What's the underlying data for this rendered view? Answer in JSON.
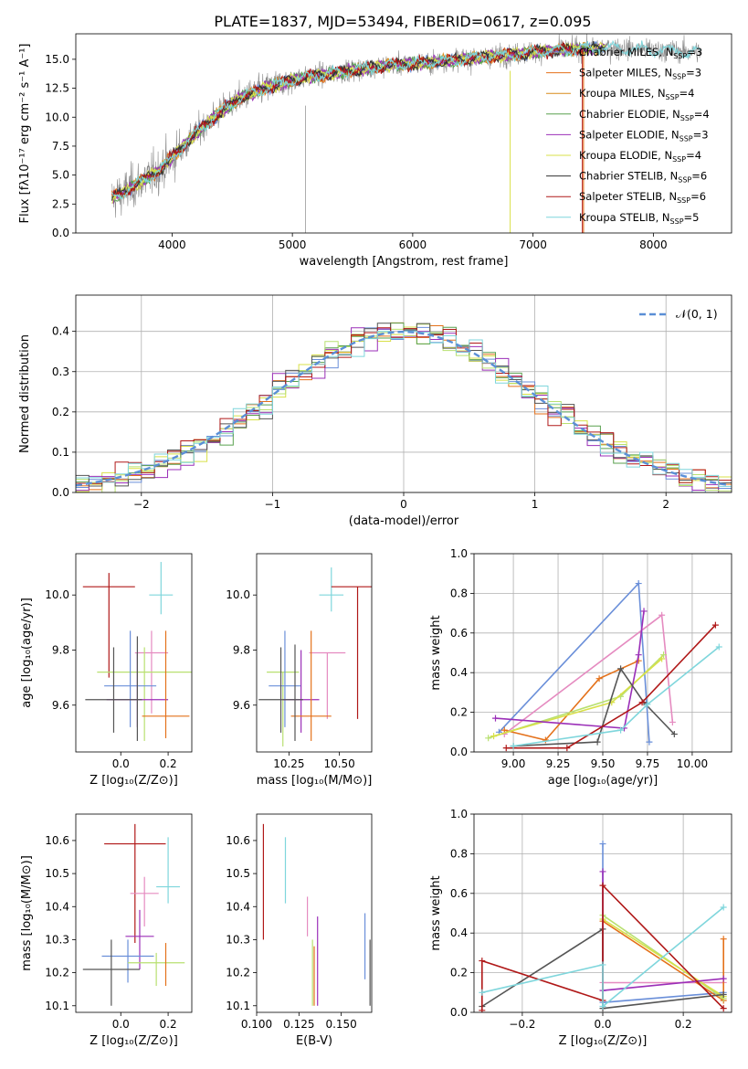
{
  "figure_title": "PLATE=1837, MJD=53494, FIBERID=0617, z=0.095",
  "colors": {
    "Chabrier MILES": "#6a8fd9",
    "Salpeter MILES": "#e4711a",
    "Kroupa MILES": "#d88c1a",
    "Chabrier ELODIE": "#59a14f",
    "Salpeter ELODIE": "#9b2fb8",
    "Kroupa ELODIE": "#d8e048",
    "Chabrier STELIB": "#333333",
    "Salpeter STELIB": "#b01818",
    "Kroupa STELIB": "#7fd6dc",
    "pink": "#e58bc0",
    "lime": "#b8e070",
    "darkgray": "#555555",
    "dashed": "#5b8fd6"
  },
  "chart_data": [
    {
      "id": "spectrum",
      "type": "line",
      "xlabel": "wavelength [Angstrom, rest frame]",
      "ylabel": "Flux [fλ10⁻¹⁷ erg cm⁻² s⁻¹ A⁻¹]",
      "xlim": [
        3200,
        8650
      ],
      "ylim": [
        0,
        17.2
      ],
      "xticks": [
        "4000",
        "5000",
        "6000",
        "7000",
        "8000"
      ],
      "yticks": [
        "0.0",
        "2.5",
        "5.0",
        "7.5",
        "10.0",
        "12.5",
        "15.0"
      ],
      "grid": false,
      "legend_position": "upper right",
      "legend": [
        {
          "label": "Chabrier MILES, N",
          "sub": "SSP",
          "suffix": "=3",
          "color": "#6a8fd9"
        },
        {
          "label": "Salpeter MILES, N",
          "sub": "SSP",
          "suffix": "=3",
          "color": "#e4711a"
        },
        {
          "label": "Kroupa MILES, N",
          "sub": "SSP",
          "suffix": "=4",
          "color": "#d88c1a"
        },
        {
          "label": "Chabrier ELODIE, N",
          "sub": "SSP",
          "suffix": "=4",
          "color": "#59a14f"
        },
        {
          "label": "Salpeter ELODIE, N",
          "sub": "SSP",
          "suffix": "=3",
          "color": "#9b2fb8"
        },
        {
          "label": "Kroupa ELODIE, N",
          "sub": "SSP",
          "suffix": "=4",
          "color": "#d8e048"
        },
        {
          "label": "Chabrier STELIB, N",
          "sub": "SSP",
          "suffix": "=6",
          "color": "#333333"
        },
        {
          "label": "Salpeter STELIB, N",
          "sub": "SSP",
          "suffix": "=6",
          "color": "#b01818"
        },
        {
          "label": "Kroupa STELIB, N",
          "sub": "SSP",
          "suffix": "=5",
          "color": "#7fd6dc"
        }
      ],
      "continuum": {
        "x": [
          3500,
          3600,
          3700,
          3800,
          3900,
          4000,
          4100,
          4200,
          4300,
          4400,
          4500,
          4600,
          4800,
          5000,
          5200,
          5400,
          5600,
          5800,
          6000,
          6200,
          6400,
          6600,
          6800,
          7000,
          7200,
          7400,
          7600,
          7800,
          8000,
          8200,
          8400
        ],
        "y": [
          3.0,
          3.5,
          4.2,
          4.8,
          5.5,
          6.5,
          7.6,
          8.6,
          9.6,
          10.4,
          11.2,
          11.8,
          12.6,
          13.2,
          13.6,
          13.9,
          14.2,
          14.5,
          14.6,
          14.8,
          15.0,
          15.2,
          15.4,
          15.6,
          15.8,
          15.9,
          16.0,
          15.9,
          15.8,
          15.7,
          15.6
        ]
      }
    },
    {
      "id": "residuals",
      "type": "histogram",
      "xlabel": "(data-model)/error",
      "ylabel": "Normed distribution",
      "xlim": [
        -2.5,
        2.5
      ],
      "ylim": [
        0,
        0.49
      ],
      "xticks": [
        "−2",
        "−1",
        "0",
        "1",
        "2"
      ],
      "yticks": [
        "0.0",
        "0.1",
        "0.2",
        "0.3",
        "0.4"
      ],
      "grid": true,
      "legend_position": "upper right",
      "legend": [
        {
          "label": "𝒩(0, 1)",
          "color": "#5b8fd6"
        }
      ],
      "bin_width": 0.1,
      "bin_start": -2.5
    },
    {
      "id": "age_vs_Z",
      "type": "errorbar",
      "xlabel": "Z [log₁₀(Z/Z⊙)]",
      "ylabel": "age  [log₁₀(age/yr)]",
      "xlim": [
        -0.19,
        0.3
      ],
      "ylim": [
        9.43,
        10.15
      ],
      "xticks": [
        "0.0",
        "0.2"
      ],
      "yticks": [
        "9.6",
        "9.8",
        "10.0"
      ],
      "points": [
        {
          "x": 0.06,
          "y": 10.0,
          "xerr": 0.0,
          "yerr": [
            0.0,
            0.0
          ],
          "color": "#6a8fd9"
        },
        {
          "x": -0.05,
          "y": 10.03,
          "xerr": 0.11,
          "yerr": [
            0.33,
            0.05
          ],
          "color": "#b01818"
        },
        {
          "x": 0.17,
          "y": 10.0,
          "xerr": 0.05,
          "yerr": [
            0.07,
            0.12
          ],
          "color": "#7fd6dc"
        },
        {
          "x": 0.13,
          "y": 9.79,
          "xerr": 0.07,
          "yerr": [
            0.22,
            0.08
          ],
          "color": "#e58bc0"
        },
        {
          "x": 0.1,
          "y": 9.72,
          "xerr": 0.2,
          "yerr": [
            0.25,
            0.09
          ],
          "color": "#b8e070"
        },
        {
          "x": 0.04,
          "y": 9.67,
          "xerr": 0.11,
          "yerr": [
            0.15,
            0.2
          ],
          "color": "#6a8fd9"
        },
        {
          "x": 0.07,
          "y": 9.62,
          "xerr": 0.13,
          "yerr": [
            0.1,
            0.17
          ],
          "color": "#9b2fb8"
        },
        {
          "x": -0.03,
          "y": 9.62,
          "xerr": 0.12,
          "yerr": [
            0.12,
            0.19
          ],
          "color": "#555555"
        },
        {
          "x": 0.19,
          "y": 9.56,
          "xerr": 0.1,
          "yerr": [
            0.08,
            0.31
          ],
          "color": "#e4711a"
        },
        {
          "x": 0.07,
          "y": 9.72,
          "xerr": 0.0,
          "yerr": [
            0.25,
            0.13
          ],
          "color": "#555555"
        }
      ]
    },
    {
      "id": "age_vs_mass",
      "type": "errorbar",
      "xlabel": "mass [log₁₀(M/M⊙)]",
      "ylabel": "",
      "xlim": [
        10.09,
        10.66
      ],
      "ylim": [
        9.43,
        10.15
      ],
      "xticks": [
        "10.25",
        "10.50"
      ],
      "yticks": [
        "9.6",
        "9.8",
        "10.0"
      ],
      "points": [
        {
          "x": 10.46,
          "y": 10.0,
          "xerr": 0.06,
          "yerr": [
            0.06,
            0.1
          ],
          "color": "#7fd6dc"
        },
        {
          "x": 10.59,
          "y": 10.03,
          "xerr": 0.13,
          "yerr": [
            0.48,
            0.0
          ],
          "color": "#b01818"
        },
        {
          "x": 10.44,
          "y": 9.79,
          "xerr": 0.09,
          "yerr": [
            0.24,
            0.0
          ],
          "color": "#e58bc0"
        },
        {
          "x": 10.22,
          "y": 9.72,
          "xerr": 0.08,
          "yerr": [
            0.27,
            0.0
          ],
          "color": "#b8e070"
        },
        {
          "x": 10.23,
          "y": 9.67,
          "xerr": 0.08,
          "yerr": [
            0.15,
            0.2
          ],
          "color": "#6a8fd9"
        },
        {
          "x": 10.31,
          "y": 9.62,
          "xerr": 0.09,
          "yerr": [
            0.12,
            0.18
          ],
          "color": "#9b2fb8"
        },
        {
          "x": 10.21,
          "y": 9.62,
          "xerr": 0.11,
          "yerr": [
            0.12,
            0.19
          ],
          "color": "#555555"
        },
        {
          "x": 10.36,
          "y": 9.56,
          "xerr": 0.1,
          "yerr": [
            0.09,
            0.31
          ],
          "color": "#e4711a"
        },
        {
          "x": 10.28,
          "y": 9.72,
          "xerr": 0.0,
          "yerr": [
            0.25,
            0.1
          ],
          "color": "#555555"
        }
      ]
    },
    {
      "id": "weight_vs_age",
      "type": "line",
      "xlabel": "age  [log₁₀(age/yr)]",
      "ylabel": "mass weight",
      "xlim": [
        8.78,
        10.22
      ],
      "ylim": [
        0,
        1.0
      ],
      "xticks": [
        "9.00",
        "9.25",
        "9.50",
        "9.75",
        "10.00"
      ],
      "yticks": [
        "0.0",
        "0.2",
        "0.4",
        "0.6",
        "0.8",
        "1.0"
      ],
      "grid": true,
      "series": [
        {
          "color": "#6a8fd9",
          "x": [
            8.92,
            9.7,
            9.76
          ],
          "y": [
            0.1,
            0.85,
            0.05
          ]
        },
        {
          "color": "#e58bc0",
          "x": [
            8.95,
            9.83,
            9.89
          ],
          "y": [
            0.09,
            0.69,
            0.15
          ]
        },
        {
          "color": "#e4711a",
          "x": [
            8.95,
            9.18,
            9.48,
            9.7
          ],
          "y": [
            0.11,
            0.06,
            0.37,
            0.46
          ]
        },
        {
          "color": "#b8e070",
          "x": [
            8.86,
            9.6,
            9.84
          ],
          "y": [
            0.07,
            0.28,
            0.49
          ]
        },
        {
          "color": "#d8e048",
          "x": [
            8.89,
            9.55,
            9.83
          ],
          "y": [
            0.08,
            0.25,
            0.47
          ]
        },
        {
          "color": "#9b2fb8",
          "x": [
            8.9,
            9.62,
            9.7,
            9.73
          ],
          "y": [
            0.17,
            0.12,
            0.49,
            0.71
          ]
        },
        {
          "color": "#555555",
          "x": [
            9.0,
            9.47,
            9.6,
            9.73,
            9.9
          ],
          "y": [
            0.03,
            0.05,
            0.42,
            0.25,
            0.09
          ]
        },
        {
          "color": "#b01818",
          "x": [
            8.96,
            9.3,
            9.72,
            10.13
          ],
          "y": [
            0.02,
            0.02,
            0.25,
            0.64
          ]
        },
        {
          "color": "#7fd6dc",
          "x": [
            9.0,
            9.6,
            9.75,
            10.15
          ],
          "y": [
            0.03,
            0.11,
            0.24,
            0.53
          ]
        }
      ]
    },
    {
      "id": "mass_vs_Z",
      "type": "errorbar",
      "xlabel": "Z [log₁₀(Z/Z⊙)]",
      "ylabel": "mass [log₁₀(M/M⊙)]",
      "xlim": [
        -0.19,
        0.3
      ],
      "ylim": [
        10.08,
        10.68
      ],
      "xticks": [
        "0.0",
        "0.2"
      ],
      "yticks": [
        "10.1",
        "10.2",
        "10.3",
        "10.4",
        "10.5",
        "10.6"
      ],
      "points": [
        {
          "x": 0.06,
          "y": 10.59,
          "xerr": 0.13,
          "yerr": [
            0.3,
            0.06
          ],
          "color": "#b01818"
        },
        {
          "x": 0.2,
          "y": 10.46,
          "xerr": 0.05,
          "yerr": [
            0.05,
            0.15
          ],
          "color": "#7fd6dc"
        },
        {
          "x": 0.1,
          "y": 10.44,
          "xerr": 0.06,
          "yerr": [
            0.1,
            0.05
          ],
          "color": "#e58bc0"
        },
        {
          "x": 0.08,
          "y": 10.31,
          "xerr": 0.06,
          "yerr": [
            0.1,
            0.08
          ],
          "color": "#9b2fb8"
        },
        {
          "x": 0.03,
          "y": 10.25,
          "xerr": 0.11,
          "yerr": [
            0.08,
            0.05
          ],
          "color": "#6a8fd9"
        },
        {
          "x": 0.15,
          "y": 10.23,
          "xerr": 0.12,
          "yerr": [
            0.07,
            0.03
          ],
          "color": "#b8e070"
        },
        {
          "x": -0.04,
          "y": 10.21,
          "xerr": 0.12,
          "yerr": [
            0.11,
            0.09
          ],
          "color": "#555555"
        },
        {
          "x": 0.19,
          "y": 10.23,
          "xerr": 0.0,
          "yerr": [
            0.07,
            0.06
          ],
          "color": "#e4711a"
        }
      ]
    },
    {
      "id": "mass_vs_ebv",
      "type": "errorbar",
      "xlabel": "E(B-V)",
      "ylabel": "",
      "xlim": [
        0.1,
        0.168
      ],
      "ylim": [
        10.08,
        10.68
      ],
      "xticks": [
        "0.100",
        "0.125",
        "0.150"
      ],
      "yticks": [
        "10.1",
        "10.2",
        "10.3",
        "10.4",
        "10.5",
        "10.6"
      ],
      "points": [
        {
          "x": 0.104,
          "y": 10.48,
          "xerr": 0.0,
          "yerr": [
            0.18,
            0.17
          ],
          "color": "#b01818"
        },
        {
          "x": 0.117,
          "y": 10.51,
          "xerr": 0.0,
          "yerr": [
            0.1,
            0.1
          ],
          "color": "#7fd6dc"
        },
        {
          "x": 0.13,
          "y": 10.37,
          "xerr": 0.0,
          "yerr": [
            0.06,
            0.06
          ],
          "color": "#e58bc0"
        },
        {
          "x": 0.136,
          "y": 10.24,
          "xerr": 0.0,
          "yerr": [
            0.14,
            0.13
          ],
          "color": "#9b2fb8"
        },
        {
          "x": 0.133,
          "y": 10.2,
          "xerr": 0.0,
          "yerr": [
            0.1,
            0.1
          ],
          "color": "#b8e070"
        },
        {
          "x": 0.134,
          "y": 10.18,
          "xerr": 0.0,
          "yerr": [
            0.08,
            0.1
          ],
          "color": "#e4711a"
        },
        {
          "x": 0.164,
          "y": 10.28,
          "xerr": 0.0,
          "yerr": [
            0.1,
            0.1
          ],
          "color": "#6a8fd9"
        },
        {
          "x": 0.167,
          "y": 10.2,
          "xerr": 0.0,
          "yerr": [
            0.1,
            0.1
          ],
          "color": "#555555"
        }
      ]
    },
    {
      "id": "weight_vs_Z",
      "type": "line",
      "xlabel": "Z [log₁₀(Z/Z⊙)]",
      "ylabel": "mass weight",
      "xlim": [
        -0.32,
        0.32
      ],
      "ylim": [
        0,
        1.0
      ],
      "xticks": [
        "−0.2",
        "0.0",
        "0.2"
      ],
      "yticks": [
        "0.0",
        "0.2",
        "0.4",
        "0.6",
        "0.8",
        "1.0"
      ],
      "grid": true,
      "series": [
        {
          "color": "#6a8fd9",
          "x": [
            0.0,
            0.0,
            0.3
          ],
          "y": [
            0.85,
            0.05,
            0.1
          ]
        },
        {
          "color": "#e58bc0",
          "x": [
            0.0,
            0.3
          ],
          "y": [
            0.15,
            0.15
          ]
        },
        {
          "color": "#e4711a",
          "x": [
            0.0,
            0.3,
            0.3
          ],
          "y": [
            0.46,
            0.06,
            0.37
          ]
        },
        {
          "color": "#b8e070",
          "x": [
            0.0,
            0.3
          ],
          "y": [
            0.49,
            0.07
          ]
        },
        {
          "color": "#d8e048",
          "x": [
            0.0,
            0.3
          ],
          "y": [
            0.47,
            0.08
          ]
        },
        {
          "color": "#9b2fb8",
          "x": [
            0.0,
            0.0,
            0.3
          ],
          "y": [
            0.71,
            0.11,
            0.17
          ]
        },
        {
          "color": "#555555",
          "x": [
            -0.3,
            0.0,
            0.0,
            0.3
          ],
          "y": [
            0.03,
            0.42,
            0.02,
            0.09
          ]
        },
        {
          "color": "#b01818",
          "x": [
            -0.3,
            -0.3,
            0.0,
            0.0,
            0.3
          ],
          "y": [
            0.01,
            0.26,
            0.06,
            0.64,
            0.02
          ]
        },
        {
          "color": "#7fd6dc",
          "x": [
            -0.3,
            0.0,
            0.0,
            0.3
          ],
          "y": [
            0.1,
            0.24,
            0.03,
            0.53
          ]
        }
      ]
    }
  ]
}
